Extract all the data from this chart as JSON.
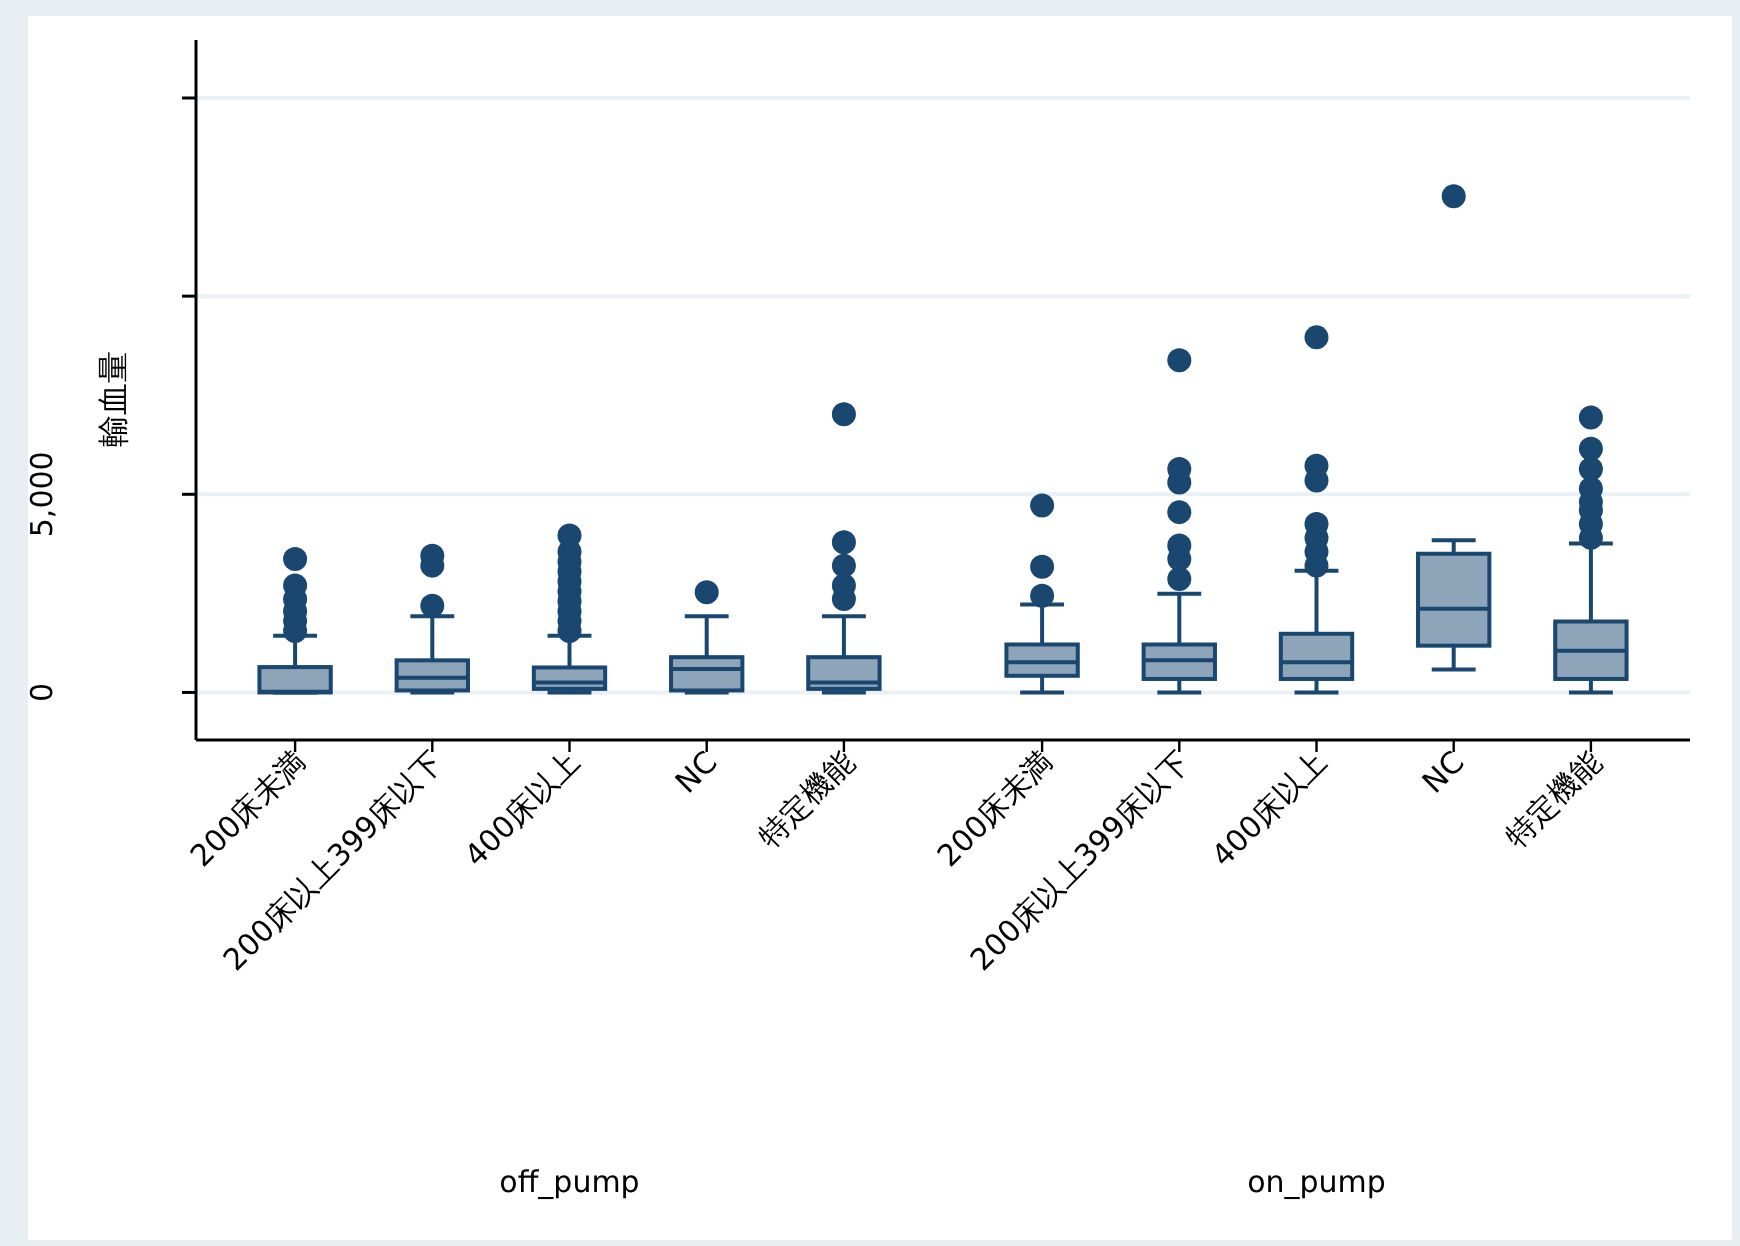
{
  "chart_data": [
    {
      "type": "box",
      "ylabel": "輸血量",
      "xlabel": "off_pump",
      "categories": [
        "200床未満",
        "200床以上399床以下",
        "400床以上",
        "NC",
        "特定機能"
      ],
      "ylim": [
        -1200,
        15000
      ],
      "yticks": [
        0,
        {
          "value": 5000,
          "label": "5,000"
        },
        {
          "value": 10000,
          "label": null
        },
        {
          "value": 15000,
          "label": null
        }
      ],
      "grid": "y",
      "series": [
        {
          "color": "#8ea4b8",
          "boxes": [
            {
              "low": 0,
              "q1": 0,
              "median": 20,
              "q3": 640,
              "high": 1430,
              "outliers": [
                1550,
                1800,
                2050,
                2350,
                2700,
                3370
              ]
            },
            {
              "low": 0,
              "q1": 50,
              "median": 370,
              "q3": 810,
              "high": 1920,
              "outliers": [
                2190,
                3200,
                3450
              ]
            },
            {
              "low": 0,
              "q1": 90,
              "median": 250,
              "q3": 630,
              "high": 1430,
              "outliers": [
                1550,
                1800,
                2050,
                2300,
                2550,
                2800,
                3050,
                3300,
                3550,
                3960
              ]
            },
            {
              "low": 0,
              "q1": 50,
              "median": 590,
              "q3": 890,
              "high": 1920,
              "outliers": [
                2530
              ]
            },
            {
              "low": 0,
              "q1": 90,
              "median": 250,
              "q3": 890,
              "high": 1920,
              "outliers": [
                2360,
                2700,
                3200,
                3790,
                7020
              ]
            }
          ]
        }
      ]
    },
    {
      "type": "box",
      "xlabel": "on_pump",
      "tick_labels": "x",
      "categories": [
        "200床未満",
        "200床以上399床以下",
        "400床以上",
        "NC",
        "特定機能"
      ],
      "ylim": [
        -1200,
        15000
      ],
      "grid": "y",
      "series": [
        {
          "color": "#8ea4b8",
          "boxes": [
            {
              "low": 0,
              "q1": 420,
              "median": 760,
              "q3": 1210,
              "high": 2220,
              "outliers": [
                2440,
                3170,
                4720
              ]
            },
            {
              "low": 0,
              "q1": 340,
              "median": 810,
              "q3": 1210,
              "high": 2490,
              "outliers": [
                2860,
                3370,
                3710,
                4550,
                5300,
                5640,
                8380
              ]
            },
            {
              "low": 0,
              "q1": 340,
              "median": 760,
              "q3": 1480,
              "high": 3070,
              "outliers": [
                3200,
                3550,
                3900,
                4250,
                5350,
                5720,
                8960
              ]
            },
            {
              "low": 580,
              "q1": 1180,
              "median": 2110,
              "q3": 3500,
              "high": 3840,
              "outliers": [
                12520
              ]
            },
            {
              "low": 0,
              "q1": 340,
              "median": 1050,
              "q3": 1790,
              "high": 3760,
              "outliers": [
                3900,
                4250,
                4600,
                4800,
                5140,
                5640,
                6150,
                6940
              ]
            }
          ]
        }
      ]
    }
  ]
}
